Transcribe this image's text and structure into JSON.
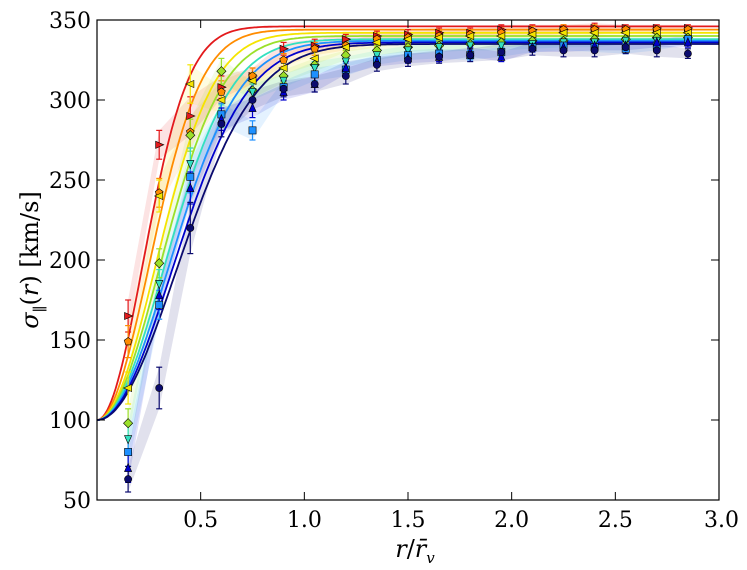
{
  "chart_data": {
    "type": "line",
    "title": "",
    "xlabel": "r/r̄_v",
    "ylabel": "σ_∥(r) [km/s]",
    "xlim": [
      0.0,
      3.0
    ],
    "ylim": [
      50,
      350
    ],
    "xticks": [
      0.5,
      1.0,
      1.5,
      2.0,
      2.5,
      3.0
    ],
    "xtick_labels": [
      "0.5",
      "1.0",
      "1.5",
      "2.0",
      "2.5",
      "3.0"
    ],
    "yticks": [
      50,
      100,
      150,
      200,
      250,
      300,
      350
    ],
    "ytick_labels": [
      "50",
      "100",
      "150",
      "200",
      "250",
      "300",
      "350"
    ],
    "grid": false,
    "legend": "none",
    "series": [
      {
        "color": "#e31a1c",
        "marker": "triangle-right",
        "curve": {
          "y0": 100,
          "ymax": 346,
          "r0": 0.22
        },
        "points": [
          {
            "x": 0.15,
            "y": 165,
            "err": 10
          },
          {
            "x": 0.3,
            "y": 272,
            "err": 9
          },
          {
            "x": 0.45,
            "y": 290,
            "err": 12
          },
          {
            "x": 0.6,
            "y": 308,
            "err": 7
          },
          {
            "x": 0.75,
            "y": 315,
            "err": 5
          },
          {
            "x": 0.9,
            "y": 332,
            "err": 4
          },
          {
            "x": 1.05,
            "y": 334,
            "err": 4
          },
          {
            "x": 1.2,
            "y": 338,
            "err": 3
          },
          {
            "x": 1.35,
            "y": 340,
            "err": 3
          },
          {
            "x": 1.5,
            "y": 341,
            "err": 3
          },
          {
            "x": 1.65,
            "y": 342,
            "err": 3
          },
          {
            "x": 1.8,
            "y": 342,
            "err": 3
          },
          {
            "x": 1.95,
            "y": 344,
            "err": 3
          },
          {
            "x": 2.1,
            "y": 344,
            "err": 3
          },
          {
            "x": 2.25,
            "y": 344,
            "err": 3
          },
          {
            "x": 2.4,
            "y": 345,
            "err": 3
          },
          {
            "x": 2.55,
            "y": 345,
            "err": 2
          },
          {
            "x": 2.7,
            "y": 345,
            "err": 2
          },
          {
            "x": 2.85,
            "y": 345,
            "err": 2
          }
        ]
      },
      {
        "color": "#ff8c00",
        "marker": "pentagon",
        "curve": {
          "y0": 100,
          "ymax": 344,
          "r0": 0.25
        },
        "points": [
          {
            "x": 0.15,
            "y": 149,
            "err": 10
          },
          {
            "x": 0.3,
            "y": 242,
            "err": 9
          },
          {
            "x": 0.45,
            "y": 280,
            "err": 10
          },
          {
            "x": 0.6,
            "y": 305,
            "err": 7
          },
          {
            "x": 0.75,
            "y": 315,
            "err": 5
          },
          {
            "x": 0.9,
            "y": 325,
            "err": 4
          },
          {
            "x": 1.05,
            "y": 332,
            "err": 4
          },
          {
            "x": 1.2,
            "y": 334,
            "err": 3
          },
          {
            "x": 1.35,
            "y": 338,
            "err": 3
          },
          {
            "x": 1.5,
            "y": 339,
            "err": 3
          },
          {
            "x": 1.65,
            "y": 340,
            "err": 3
          },
          {
            "x": 1.8,
            "y": 341,
            "err": 3
          },
          {
            "x": 1.95,
            "y": 342,
            "err": 3
          },
          {
            "x": 2.1,
            "y": 343,
            "err": 3
          },
          {
            "x": 2.25,
            "y": 344,
            "err": 3
          },
          {
            "x": 2.4,
            "y": 344,
            "err": 3
          },
          {
            "x": 2.55,
            "y": 344,
            "err": 2
          },
          {
            "x": 2.7,
            "y": 344,
            "err": 2
          },
          {
            "x": 2.85,
            "y": 344,
            "err": 2
          }
        ]
      },
      {
        "color": "#f5e400",
        "marker": "triangle-left",
        "curve": {
          "y0": 100,
          "ymax": 342,
          "r0": 0.28
        },
        "points": [
          {
            "x": 0.15,
            "y": 120,
            "err": 10
          },
          {
            "x": 0.3,
            "y": 240,
            "err": 10
          },
          {
            "x": 0.45,
            "y": 310,
            "err": 12
          },
          {
            "x": 0.6,
            "y": 300,
            "err": 8
          },
          {
            "x": 0.75,
            "y": 312,
            "err": 5
          },
          {
            "x": 0.9,
            "y": 320,
            "err": 4
          },
          {
            "x": 1.05,
            "y": 326,
            "err": 4
          },
          {
            "x": 1.2,
            "y": 333,
            "err": 3
          },
          {
            "x": 1.35,
            "y": 336,
            "err": 3
          },
          {
            "x": 1.5,
            "y": 338,
            "err": 3
          },
          {
            "x": 1.65,
            "y": 339,
            "err": 3
          },
          {
            "x": 1.8,
            "y": 340,
            "err": 3
          },
          {
            "x": 1.95,
            "y": 340,
            "err": 3
          },
          {
            "x": 2.1,
            "y": 341,
            "err": 3
          },
          {
            "x": 2.25,
            "y": 342,
            "err": 3
          },
          {
            "x": 2.4,
            "y": 342,
            "err": 3
          },
          {
            "x": 2.55,
            "y": 342,
            "err": 2
          },
          {
            "x": 2.7,
            "y": 342,
            "err": 2
          },
          {
            "x": 2.85,
            "y": 342,
            "err": 2
          }
        ]
      },
      {
        "color": "#9be02a",
        "marker": "diamond",
        "curve": {
          "y0": 100,
          "ymax": 340,
          "r0": 0.3
        },
        "points": [
          {
            "x": 0.15,
            "y": 98,
            "err": 9
          },
          {
            "x": 0.3,
            "y": 198,
            "err": 9
          },
          {
            "x": 0.45,
            "y": 278,
            "err": 10
          },
          {
            "x": 0.6,
            "y": 318,
            "err": 8
          },
          {
            "x": 0.75,
            "y": 306,
            "err": 5
          },
          {
            "x": 0.9,
            "y": 315,
            "err": 4
          },
          {
            "x": 1.05,
            "y": 322,
            "err": 4
          },
          {
            "x": 1.2,
            "y": 328,
            "err": 3
          },
          {
            "x": 1.35,
            "y": 331,
            "err": 3
          },
          {
            "x": 1.5,
            "y": 333,
            "err": 3
          },
          {
            "x": 1.65,
            "y": 334,
            "err": 3
          },
          {
            "x": 1.8,
            "y": 335,
            "err": 3
          },
          {
            "x": 1.95,
            "y": 336,
            "err": 3
          },
          {
            "x": 2.1,
            "y": 337,
            "err": 3
          },
          {
            "x": 2.25,
            "y": 337,
            "err": 3
          },
          {
            "x": 2.4,
            "y": 338,
            "err": 3
          },
          {
            "x": 2.55,
            "y": 338,
            "err": 2
          },
          {
            "x": 2.7,
            "y": 339,
            "err": 2
          },
          {
            "x": 2.85,
            "y": 339,
            "err": 2
          }
        ]
      },
      {
        "color": "#33e0c0",
        "marker": "triangle-down",
        "curve": {
          "y0": 100,
          "ymax": 338,
          "r0": 0.32
        },
        "points": [
          {
            "x": 0.15,
            "y": 88,
            "err": 9
          },
          {
            "x": 0.3,
            "y": 185,
            "err": 9
          },
          {
            "x": 0.45,
            "y": 260,
            "err": 10
          },
          {
            "x": 0.6,
            "y": 290,
            "err": 7
          },
          {
            "x": 0.75,
            "y": 305,
            "err": 5
          },
          {
            "x": 0.9,
            "y": 312,
            "err": 4
          },
          {
            "x": 1.05,
            "y": 320,
            "err": 4
          },
          {
            "x": 1.2,
            "y": 324,
            "err": 3
          },
          {
            "x": 1.35,
            "y": 328,
            "err": 3
          },
          {
            "x": 1.5,
            "y": 331,
            "err": 3
          },
          {
            "x": 1.65,
            "y": 333,
            "err": 3
          },
          {
            "x": 1.8,
            "y": 334,
            "err": 3
          },
          {
            "x": 1.95,
            "y": 334,
            "err": 3
          },
          {
            "x": 2.1,
            "y": 335,
            "err": 3
          },
          {
            "x": 2.25,
            "y": 336,
            "err": 3
          },
          {
            "x": 2.4,
            "y": 336,
            "err": 3
          },
          {
            "x": 2.55,
            "y": 337,
            "err": 2
          },
          {
            "x": 2.7,
            "y": 337,
            "err": 2
          },
          {
            "x": 2.85,
            "y": 337,
            "err": 2
          }
        ]
      },
      {
        "color": "#1e90ff",
        "marker": "square",
        "curve": {
          "y0": 100,
          "ymax": 337,
          "r0": 0.34
        },
        "points": [
          {
            "x": 0.15,
            "y": 80,
            "err": 9
          },
          {
            "x": 0.3,
            "y": 172,
            "err": 9
          },
          {
            "x": 0.45,
            "y": 252,
            "err": 10
          },
          {
            "x": 0.6,
            "y": 291,
            "err": 7
          },
          {
            "x": 0.75,
            "y": 281,
            "err": 6
          },
          {
            "x": 0.9,
            "y": 308,
            "err": 4
          },
          {
            "x": 1.05,
            "y": 316,
            "err": 4
          },
          {
            "x": 1.2,
            "y": 319,
            "err": 4
          },
          {
            "x": 1.35,
            "y": 325,
            "err": 3
          },
          {
            "x": 1.5,
            "y": 328,
            "err": 3
          },
          {
            "x": 1.65,
            "y": 329,
            "err": 3
          },
          {
            "x": 1.8,
            "y": 328,
            "err": 3
          },
          {
            "x": 1.95,
            "y": 330,
            "err": 3
          },
          {
            "x": 2.1,
            "y": 333,
            "err": 3
          },
          {
            "x": 2.25,
            "y": 334,
            "err": 3
          },
          {
            "x": 2.4,
            "y": 333,
            "err": 3
          },
          {
            "x": 2.55,
            "y": 332,
            "err": 3
          },
          {
            "x": 2.7,
            "y": 334,
            "err": 3
          },
          {
            "x": 2.85,
            "y": 338,
            "err": 3
          }
        ]
      },
      {
        "color": "#0000cd",
        "marker": "triangle-up",
        "curve": {
          "y0": 100,
          "ymax": 336,
          "r0": 0.36
        },
        "points": [
          {
            "x": 0.15,
            "y": 70,
            "err": 9
          },
          {
            "x": 0.3,
            "y": 178,
            "err": 9
          },
          {
            "x": 0.45,
            "y": 245,
            "err": 10
          },
          {
            "x": 0.6,
            "y": 288,
            "err": 7
          },
          {
            "x": 0.75,
            "y": 295,
            "err": 6
          },
          {
            "x": 0.9,
            "y": 305,
            "err": 5
          },
          {
            "x": 1.05,
            "y": 310,
            "err": 5
          },
          {
            "x": 1.2,
            "y": 320,
            "err": 4
          },
          {
            "x": 1.35,
            "y": 324,
            "err": 3
          },
          {
            "x": 1.5,
            "y": 326,
            "err": 3
          },
          {
            "x": 1.65,
            "y": 327,
            "err": 3
          },
          {
            "x": 1.8,
            "y": 330,
            "err": 3
          },
          {
            "x": 1.95,
            "y": 327,
            "err": 3
          },
          {
            "x": 2.1,
            "y": 333,
            "err": 3
          },
          {
            "x": 2.25,
            "y": 333,
            "err": 3
          },
          {
            "x": 2.4,
            "y": 334,
            "err": 3
          },
          {
            "x": 2.55,
            "y": 334,
            "err": 3
          },
          {
            "x": 2.7,
            "y": 336,
            "err": 3
          },
          {
            "x": 2.85,
            "y": 336,
            "err": 3
          }
        ]
      },
      {
        "color": "#0a0a6e",
        "marker": "circle",
        "curve": {
          "y0": 100,
          "ymax": 335,
          "r0": 0.38
        },
        "points": [
          {
            "x": 0.15,
            "y": 63,
            "err": 8
          },
          {
            "x": 0.3,
            "y": 120,
            "err": 13
          },
          {
            "x": 0.45,
            "y": 220,
            "err": 16
          },
          {
            "x": 0.6,
            "y": 285,
            "err": 8
          },
          {
            "x": 0.75,
            "y": 300,
            "err": 6
          },
          {
            "x": 0.9,
            "y": 307,
            "err": 5
          },
          {
            "x": 1.05,
            "y": 310,
            "err": 5
          },
          {
            "x": 1.2,
            "y": 315,
            "err": 5
          },
          {
            "x": 1.35,
            "y": 322,
            "err": 4
          },
          {
            "x": 1.5,
            "y": 325,
            "err": 4
          },
          {
            "x": 1.65,
            "y": 327,
            "err": 4
          },
          {
            "x": 1.8,
            "y": 328,
            "err": 4
          },
          {
            "x": 1.95,
            "y": 330,
            "err": 5
          },
          {
            "x": 2.1,
            "y": 332,
            "err": 4
          },
          {
            "x": 2.25,
            "y": 331,
            "err": 4
          },
          {
            "x": 2.4,
            "y": 331,
            "err": 4
          },
          {
            "x": 2.55,
            "y": 333,
            "err": 4
          },
          {
            "x": 2.7,
            "y": 331,
            "err": 4
          },
          {
            "x": 2.85,
            "y": 329,
            "err": 3
          }
        ]
      }
    ]
  }
}
